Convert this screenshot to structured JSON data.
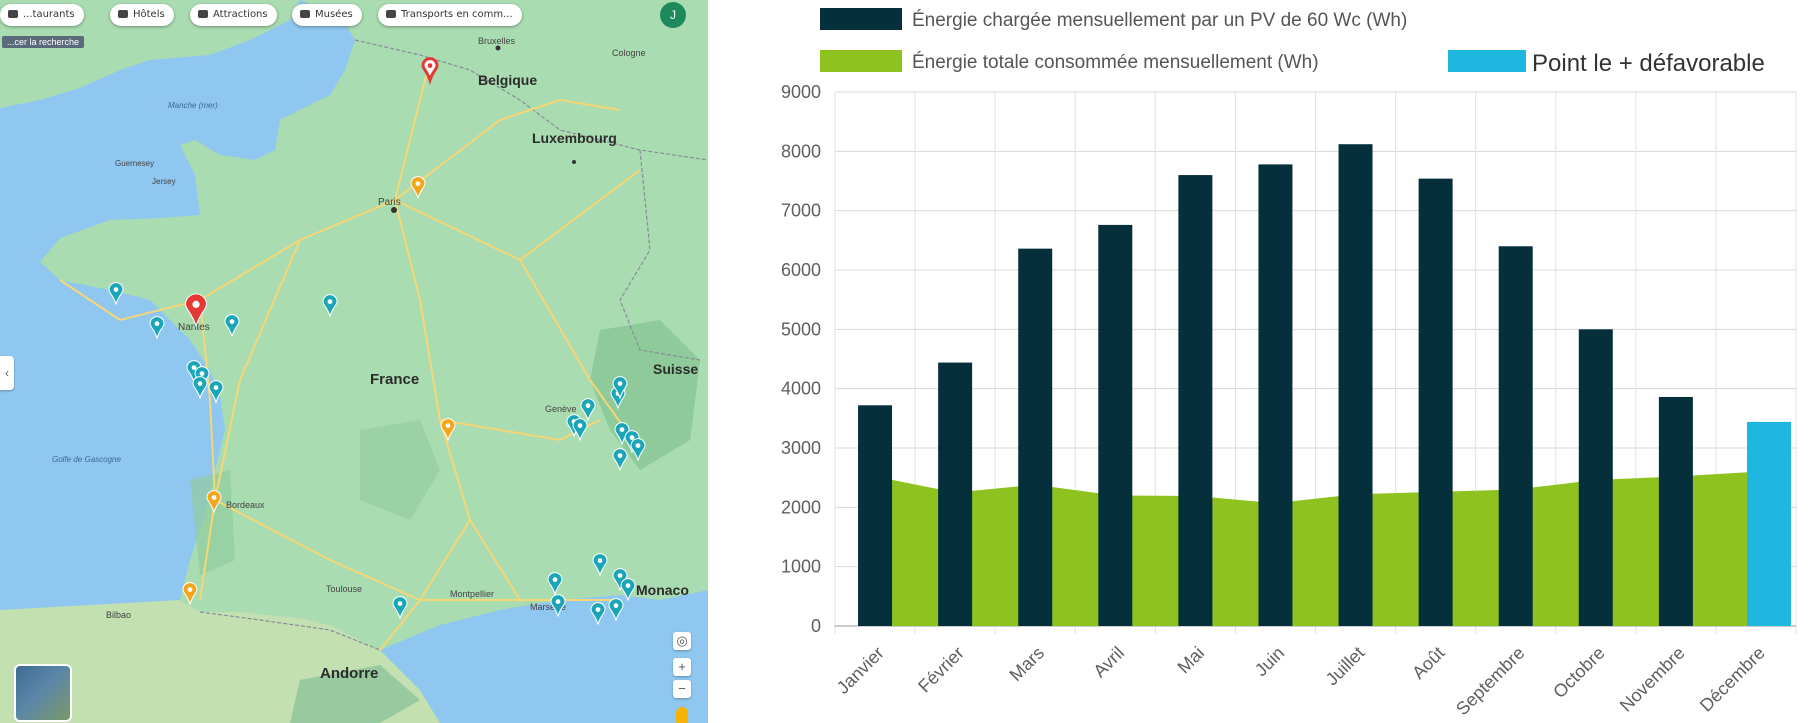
{
  "map": {
    "chips": [
      {
        "label": "...taurants",
        "icon": "restaurant-icon"
      },
      {
        "label": "Hôtels",
        "icon": "bed-icon"
      },
      {
        "label": "Attractions",
        "icon": "camera-icon"
      },
      {
        "label": "Musées",
        "icon": "museum-icon"
      },
      {
        "label": "Transports en comm...",
        "icon": "bus-icon"
      }
    ],
    "avatar_initial": "J",
    "search_area_label": "...cer la recherche",
    "labels": {
      "belgique": "Belgique",
      "luxembourg": "Luxembourg",
      "france": "France",
      "suisse": "Suisse",
      "monaco": "Monaco",
      "andorre": "Andorre",
      "paris": "Paris",
      "nantes": "Nantes",
      "toulouse": "Toulouse",
      "montpellier": "Montpellier",
      "marseille": "Marseille",
      "bordeaux": "Bordeaux",
      "geneve": "Genève",
      "bruxelles": "Bruxelles",
      "cologne": "Cologne",
      "bilbao": "Bilbao",
      "guernesey": "Guernesey",
      "jersey": "Jersey",
      "manche": "Manche (mer)",
      "golfe": "Golfe de Gascogne"
    },
    "colors": {
      "water": "#8fc7f0",
      "land": "#a9dcb1",
      "road": "#f6d675",
      "pin_teal": "#1aa5b8",
      "pin_orange": "#f4a51c",
      "pin_red": "#e53935"
    }
  },
  "chart_data": {
    "type": "bar",
    "categories": [
      "Janvier",
      "Février",
      "Mars",
      "Avril",
      "Mai",
      "Juin",
      "Juillet",
      "Août",
      "Septembre",
      "Octobre",
      "Novembre",
      "Décembre"
    ],
    "series": [
      {
        "name": "Énergie chargée mensuellement par un PV de 60 Wc (Wh)",
        "type": "bar",
        "color": "#062f3c",
        "values": [
          3720,
          4440,
          6360,
          6760,
          7600,
          7780,
          8120,
          7540,
          6400,
          5000,
          3860,
          3440
        ]
      },
      {
        "name": "Énergie totale consommée mensuellement (Wh)",
        "type": "area",
        "color": "#8dc21f",
        "values": [
          2520,
          2250,
          2380,
          2200,
          2190,
          2070,
          2220,
          2260,
          2300,
          2460,
          2520,
          2600
        ]
      },
      {
        "name": "Point le + défavorable",
        "type": "highlight",
        "color": "#1fb7e0",
        "category": "Décembre"
      }
    ],
    "ylim": [
      0,
      9000
    ],
    "yticks": [
      "0",
      "1000",
      "2000",
      "3000",
      "4000",
      "5000",
      "6000",
      "7000",
      "8000",
      "9000"
    ],
    "grid": true,
    "legend_position": "top"
  }
}
